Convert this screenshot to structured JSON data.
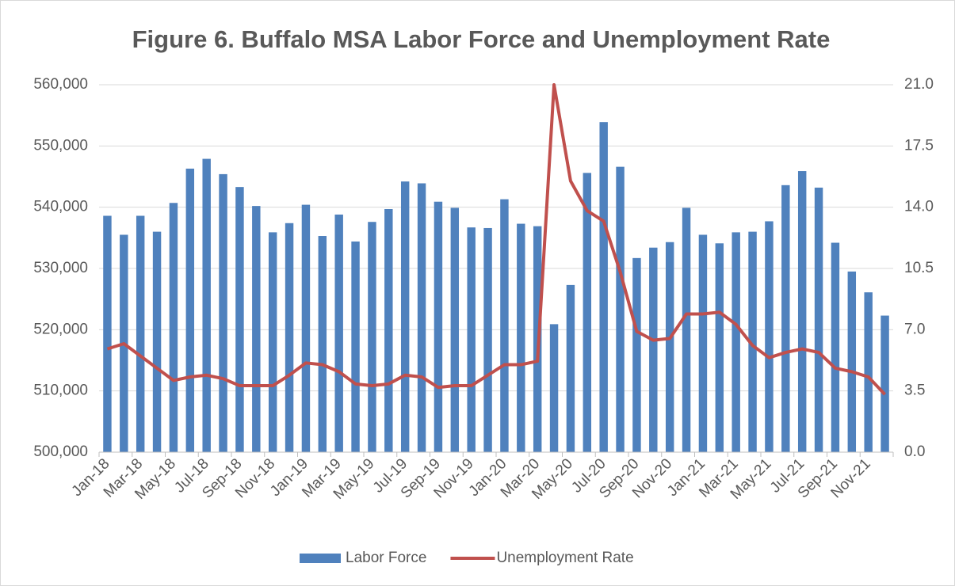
{
  "chart_data": {
    "type": "bar-line",
    "title": "Figure 6. Buffalo MSA Labor Force and Unemployment Rate",
    "categories": [
      "Jan-18",
      null,
      "Mar-18",
      null,
      "May-18",
      null,
      "Jul-18",
      null,
      "Sep-18",
      null,
      "Nov-18",
      null,
      "Jan-19",
      null,
      "Mar-19",
      null,
      "May-19",
      null,
      "Jul-19",
      null,
      "Sep-19",
      null,
      "Nov-19",
      null,
      "Jan-20",
      null,
      "Mar-20",
      null,
      "May-20",
      null,
      "Jul-20",
      null,
      "Sep-20",
      null,
      "Nov-20",
      null,
      "Jan-21",
      null,
      "Mar-21",
      null,
      "May-21",
      null,
      "Jul-21",
      null,
      "Sep-21",
      null,
      "Nov-21",
      null
    ],
    "series": [
      {
        "name": "Labor Force",
        "type": "bar",
        "color": "#4f81bd",
        "values": [
          538600,
          535500,
          538600,
          536000,
          540700,
          546300,
          547900,
          545400,
          543300,
          540200,
          535900,
          537400,
          540400,
          535300,
          538800,
          534400,
          537600,
          539700,
          544200,
          543900,
          540900,
          539900,
          536700,
          536600,
          541300,
          537300,
          536900,
          520900,
          527300,
          545600,
          553900,
          546600,
          531700,
          533400,
          534300,
          539900,
          535500,
          534100,
          535900,
          536000,
          537700,
          543600,
          545900,
          543200,
          534200,
          529500,
          526100,
          522300
        ]
      },
      {
        "name": "Unemployment Rate",
        "type": "line",
        "axis": "y2",
        "color": "#c0504d",
        "values": [
          5.9,
          6.2,
          5.5,
          4.8,
          4.1,
          4.3,
          4.4,
          4.2,
          3.8,
          3.8,
          3.8,
          4.4,
          5.1,
          5.0,
          4.6,
          3.9,
          3.8,
          3.9,
          4.4,
          4.3,
          3.7,
          3.8,
          3.8,
          4.4,
          5.0,
          5.0,
          5.2,
          21.0,
          15.5,
          13.8,
          13.2,
          10.3,
          6.9,
          6.4,
          6.5,
          7.9,
          7.9,
          8.0,
          7.3,
          6.1,
          5.4,
          5.7,
          5.9,
          5.7,
          4.8,
          4.6,
          4.3,
          3.3
        ]
      }
    ],
    "ylim": [
      500000,
      560000
    ],
    "yticks": [
      {
        "value": 500000,
        "label": "500,000"
      },
      {
        "value": 510000,
        "label": "510,000"
      },
      {
        "value": 520000,
        "label": "520,000"
      },
      {
        "value": 530000,
        "label": "530,000"
      },
      {
        "value": 540000,
        "label": "540,000"
      },
      {
        "value": 550000,
        "label": "550,000"
      },
      {
        "value": 560000,
        "label": "560,000"
      }
    ],
    "y2lim": [
      0,
      21
    ],
    "y2ticks": [
      {
        "value": 0,
        "label": "0.0"
      },
      3.5,
      {
        "value": 7,
        "label": "7.0"
      },
      10.5,
      {
        "value": 14,
        "label": "14.0"
      },
      17.5,
      {
        "value": 21,
        "label": "21.0"
      }
    ],
    "grid": true,
    "legend": "bottom"
  }
}
